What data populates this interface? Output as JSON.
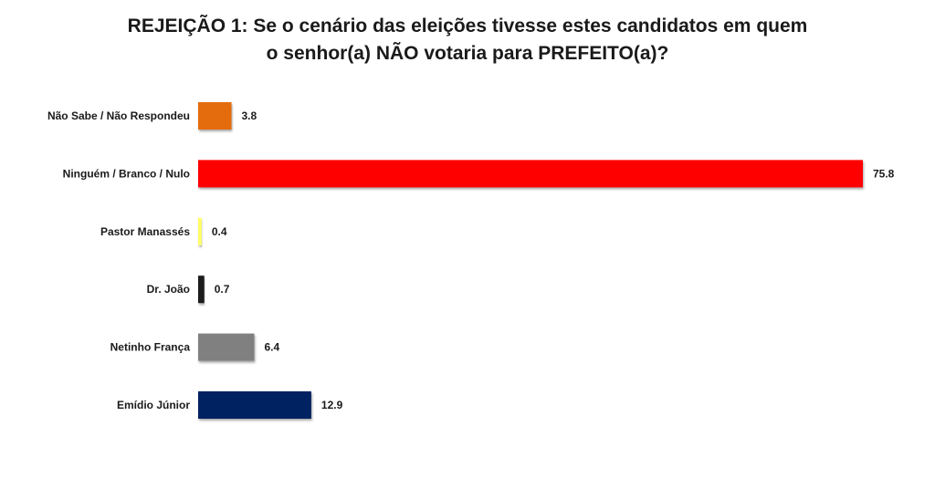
{
  "chart_data": {
    "type": "bar",
    "orientation": "horizontal",
    "title_line1": "REJEIÇÃO 1: Se o cenário das eleições tivesse estes candidatos em quem",
    "title_line2": "o senhor(a) NÃO votaria para PREFEITO(a)?",
    "categories": [
      "Não Sabe / Não Respondeu",
      "Ninguém / Branco / Nulo",
      "Pastor Manassés",
      "Dr. João",
      "Netinho França",
      "Emídio Júnior"
    ],
    "values": [
      3.8,
      75.8,
      0.4,
      0.7,
      6.4,
      12.9
    ],
    "value_labels": [
      "3.8",
      "75.8",
      "0.4",
      "0.7",
      "6.4",
      "12.9"
    ],
    "colors": [
      "#E46C0A",
      "#FF0000",
      "#FFFF66",
      "#1A1A1A",
      "#808080",
      "#002060"
    ],
    "xlim": [
      0,
      75.8
    ],
    "grid": false,
    "legend": "none"
  }
}
